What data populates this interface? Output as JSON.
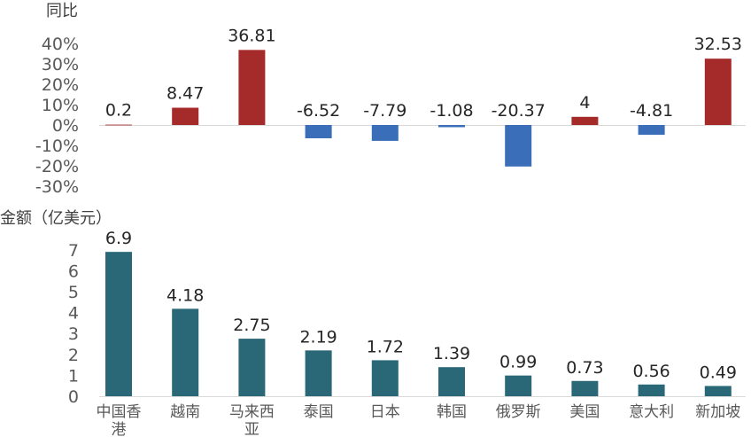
{
  "colors": {
    "positive": "#a52a2a",
    "negative": "#3a6eb8",
    "amount": "#2a6878",
    "axis_text": "#595959",
    "label_text": "#262626"
  },
  "chart_data": [
    {
      "type": "bar",
      "ylabel": "同比",
      "categories": [
        "中国香港",
        "越南",
        "马来西亚",
        "泰国",
        "日本",
        "韩国",
        "俄罗斯",
        "美国",
        "意大利",
        "新加坡"
      ],
      "values": [
        0.2,
        8.47,
        36.81,
        -6.52,
        -7.79,
        -1.08,
        -20.37,
        4,
        -4.81,
        32.53
      ],
      "data_labels": [
        "0.2",
        "8.47",
        "36.81",
        "-6.52",
        "-7.79",
        "-1.08",
        "-20.37",
        "4",
        "-4.81",
        "32.53"
      ],
      "ylim": [
        -30,
        40
      ],
      "yticks": [
        "40%",
        "30%",
        "20%",
        "10%",
        "0%",
        "-10%",
        "-20%",
        "-30%"
      ],
      "grid": false
    },
    {
      "type": "bar",
      "ylabel": "金额（亿美元）",
      "categories": [
        "中国香港",
        "越南",
        "马来西亚",
        "泰国",
        "日本",
        "韩国",
        "俄罗斯",
        "美国",
        "意大利",
        "新加坡"
      ],
      "values": [
        6.9,
        4.18,
        2.75,
        2.19,
        1.72,
        1.39,
        0.99,
        0.73,
        0.56,
        0.49
      ],
      "data_labels": [
        "6.9",
        "4.18",
        "2.75",
        "2.19",
        "1.72",
        "1.39",
        "0.99",
        "0.73",
        "0.56",
        "0.49"
      ],
      "ylim": [
        0,
        7
      ],
      "yticks": [
        "7",
        "6",
        "5",
        "4",
        "3",
        "2",
        "1",
        "0"
      ],
      "grid": false
    }
  ],
  "category_labels": [
    [
      "中国香",
      "港"
    ],
    [
      "越南"
    ],
    [
      "马来西",
      "亚"
    ],
    [
      "泰国"
    ],
    [
      "日本"
    ],
    [
      "韩国"
    ],
    [
      "俄罗斯"
    ],
    [
      "美国"
    ],
    [
      "意大利"
    ],
    [
      "新加坡"
    ]
  ]
}
